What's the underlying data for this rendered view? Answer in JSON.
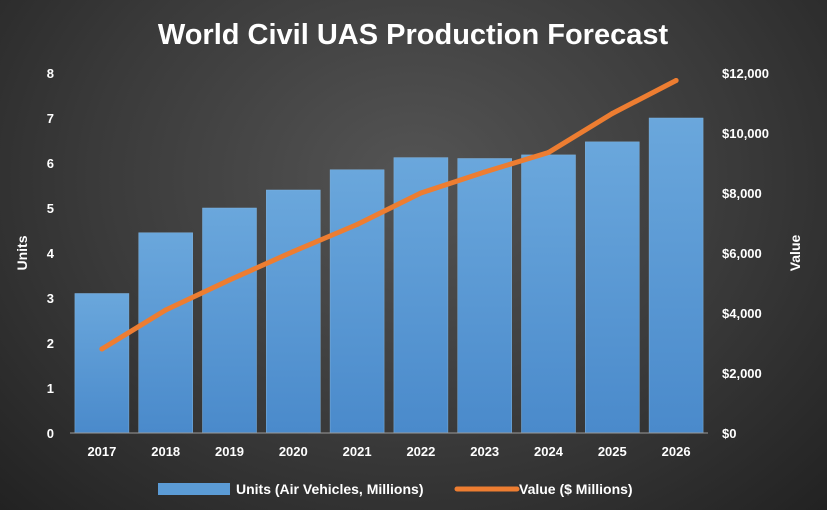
{
  "chart_data": {
    "type": "bar",
    "title": "World Civil UAS Production Forecast",
    "categories": [
      "2017",
      "2018",
      "2019",
      "2020",
      "2021",
      "2022",
      "2023",
      "2024",
      "2025",
      "2026"
    ],
    "series": [
      {
        "name": "Units (Air Vehicles, Millions)",
        "type": "bar",
        "axis": "left",
        "color": "#5b9bd5",
        "values": [
          3.1,
          4.45,
          5.0,
          5.4,
          5.85,
          6.12,
          6.1,
          6.18,
          6.47,
          7.0
        ]
      },
      {
        "name": "Value ($ Millions)",
        "type": "line",
        "axis": "right",
        "color": "#ed7d31",
        "values": [
          2800,
          4100,
          5100,
          6050,
          6950,
          8000,
          8700,
          9350,
          10650,
          11750
        ]
      }
    ],
    "ylabel": "Units",
    "ylim": [
      0,
      8
    ],
    "yticks": [
      "0",
      "1",
      "2",
      "3",
      "4",
      "5",
      "6",
      "7",
      "8"
    ],
    "y2label": "Value",
    "y2lim": [
      0,
      12000
    ],
    "y2ticks": [
      "$0",
      "$2,000",
      "$4,000",
      "$6,000",
      "$8,000",
      "$10,000",
      "$12,000"
    ],
    "grid": false,
    "legend": "bottom"
  }
}
